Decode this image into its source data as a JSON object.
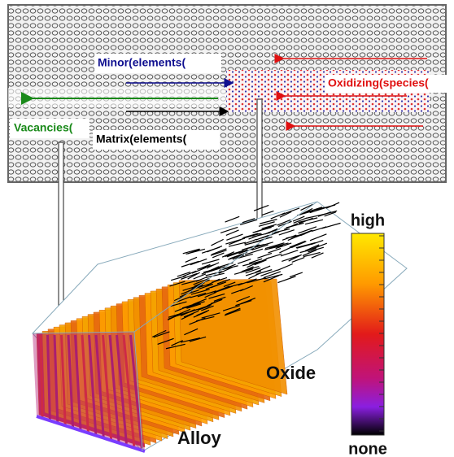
{
  "labels": {
    "minor_elements": "Minor(elements(",
    "oxidizing_species": "Oxidizing(species(",
    "vacancies": "Vacancies(",
    "matrix_elements": "Matrix(elements(",
    "oxide": "Oxide",
    "alloy": "Alloy"
  },
  "colorbar": {
    "top_label": "high",
    "bottom_label": "none"
  }
}
